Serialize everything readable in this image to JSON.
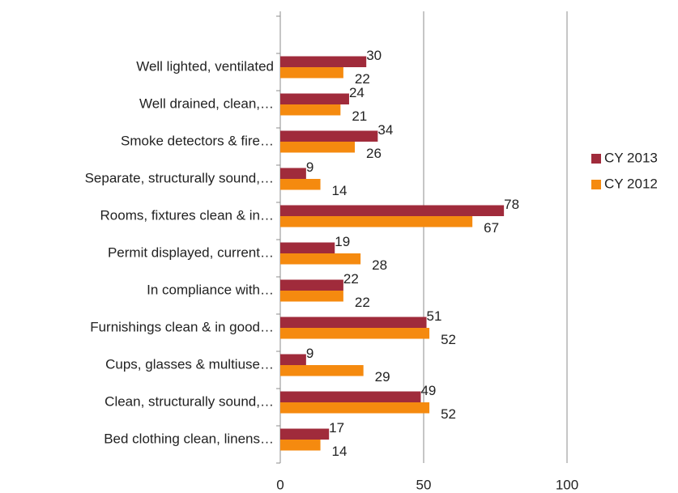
{
  "chart_data": {
    "type": "barh",
    "categories": [
      "Well lighted, ventilated",
      "Well drained, clean,…",
      "Smoke detectors & fire…",
      "Separate, structurally sound,…",
      "Rooms, fixtures clean & in…",
      "Permit displayed, current…",
      "In compliance with…",
      "Furnishings clean & in good…",
      "Cups, glasses & multiuse…",
      "Clean, structurally sound,…",
      "Bed clothing clean, linens…"
    ],
    "series": [
      {
        "name": "CY 2013",
        "color": "#a02b3b",
        "values": [
          30,
          24,
          34,
          9,
          78,
          19,
          22,
          51,
          9,
          49,
          17
        ]
      },
      {
        "name": "CY 2012",
        "color": "#f58a0f",
        "values": [
          22,
          21,
          26,
          14,
          67,
          28,
          22,
          52,
          29,
          52,
          14
        ]
      }
    ],
    "xlim": [
      0,
      100
    ],
    "xticks": [
      0,
      50,
      100
    ],
    "grid": true,
    "legend": "right"
  }
}
